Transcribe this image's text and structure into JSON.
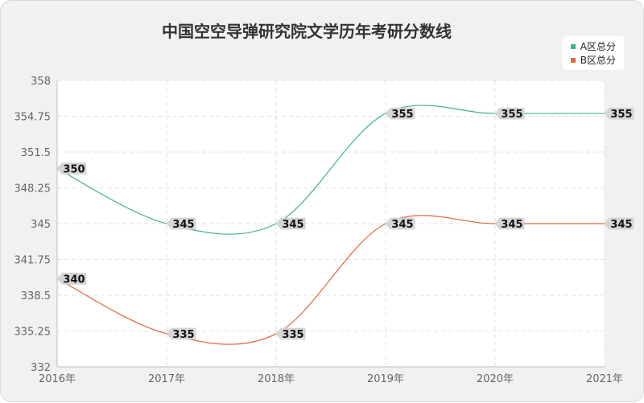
{
  "chart_data": {
    "type": "line",
    "title": "中国空空导弹研究院文学历年考研分数线",
    "categories": [
      "2016年",
      "2017年",
      "2018年",
      "2019年",
      "2020年",
      "2021年"
    ],
    "series": [
      {
        "name": "A区总分",
        "color": "#3cb48c",
        "values": [
          350,
          345,
          345,
          355,
          355,
          355
        ]
      },
      {
        "name": "B区总分",
        "color": "#e0663a",
        "values": [
          340,
          335,
          335,
          345,
          345,
          345
        ]
      }
    ],
    "y_ticks": [
      "332",
      "335.25",
      "338.5",
      "341.75",
      "345",
      "348.25",
      "351.5",
      "354.75",
      "358"
    ],
    "ylim": [
      332,
      358
    ],
    "grid": true,
    "legend_position": "top-right",
    "xlabel": "",
    "ylabel": ""
  }
}
